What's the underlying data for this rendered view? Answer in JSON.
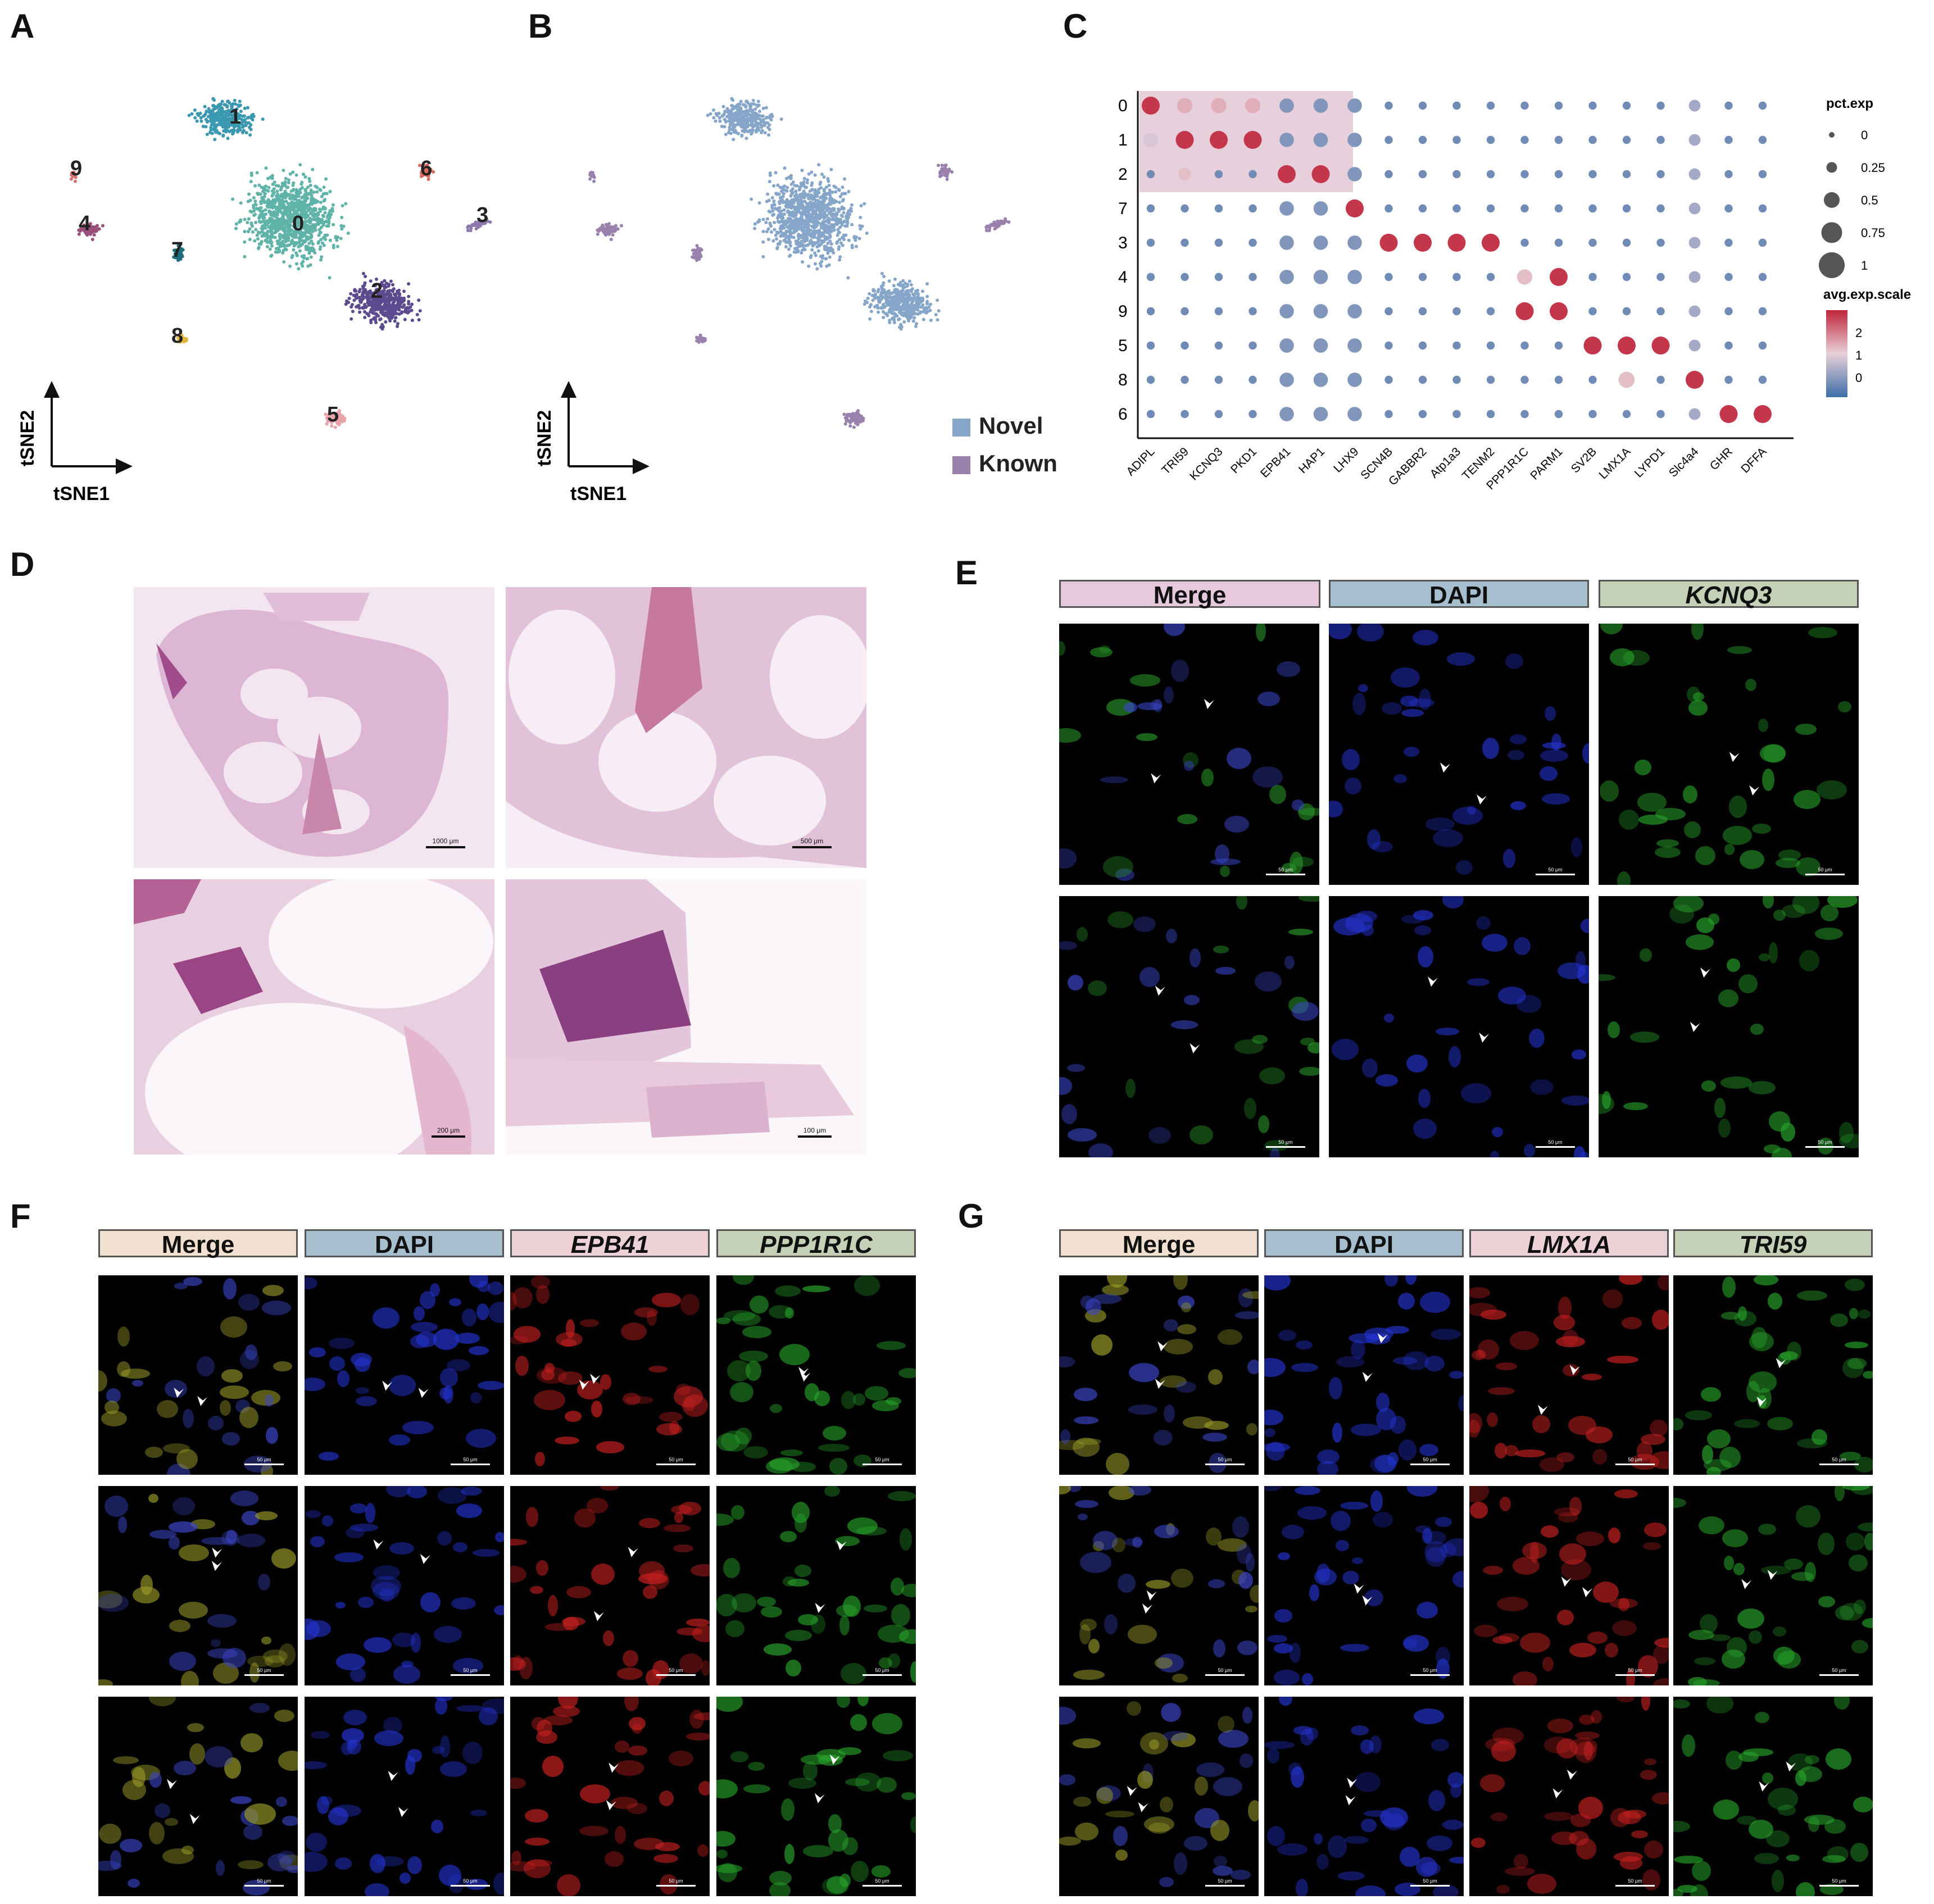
{
  "panels": {
    "A": "A",
    "B": "B",
    "C": "C",
    "D": "D",
    "E": "E",
    "F": "F",
    "G": "G"
  },
  "tsne": {
    "xlabel": "tSNE1",
    "ylabel": "tSNE2",
    "cluster_labels": [
      "0",
      "1",
      "2",
      "3",
      "4",
      "5",
      "6",
      "7",
      "8",
      "9"
    ],
    "legend": [
      {
        "label": "Novel",
        "color": "#86a6c9"
      },
      {
        "label": "Known",
        "color": "#9a80ad"
      }
    ]
  },
  "chart_data": {
    "type": "scatter",
    "subtype": "dot_plot",
    "rows": [
      "0",
      "1",
      "2",
      "7",
      "3",
      "4",
      "9",
      "5",
      "8",
      "6"
    ],
    "genes": [
      "ADIPL",
      "TRI59",
      "KCNQ3",
      "PKD1",
      "EPB41",
      "HAP1",
      "LHX9",
      "SCN4B",
      "GABBR2",
      "Atp1a3",
      "TENM2",
      "PPP1R1C",
      "PARM1",
      "SV2B",
      "LMX1A",
      "LYPD1",
      "Slc4a4",
      "GHR",
      "DFFA"
    ],
    "size_legend_title": "pct.exp",
    "size_legend_values": [
      "0",
      "0.25",
      "0.5",
      "0.75",
      "1"
    ],
    "color_legend_title": "avg.exp.scale",
    "color_legend_ticks": [
      "2",
      "1",
      "0"
    ],
    "colors": {
      "low": "#3d6fa8",
      "mid": "#e8d0d8",
      "high": "#c0253a",
      "highlight": "#e7cfdc"
    }
  },
  "he_scales": [
    "1000 μm",
    "500 μm",
    "200 μm",
    "100 μm"
  ],
  "E": {
    "headers": [
      "Merge",
      "DAPI",
      "KCNQ3"
    ],
    "scale": "50 μm"
  },
  "F": {
    "headers": [
      "Merge",
      "DAPI",
      "EPB41",
      "PPP1R1C"
    ],
    "scale": "50 μm"
  },
  "G": {
    "headers": [
      "Merge",
      "DAPI",
      "LMX1A",
      "TRI59"
    ],
    "scale": "50 μm"
  },
  "header_colors": {
    "merge_e": "#e6c9dd",
    "dapi": "#a6bfcf",
    "green": "#c5d1b6",
    "merge_fg": "#f1dfcf",
    "red": "#ecd1d6"
  }
}
